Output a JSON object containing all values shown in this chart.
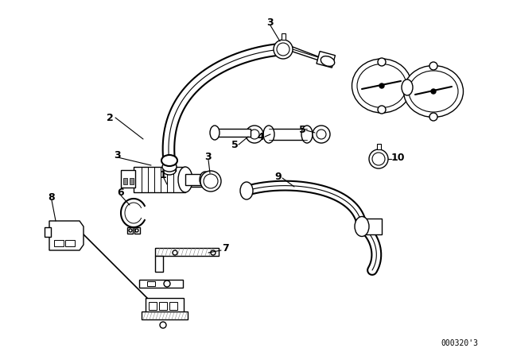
{
  "background_color": "#ffffff",
  "line_color": "#000000",
  "diagram_code": "000320'3",
  "fig_width": 6.4,
  "fig_height": 4.48,
  "dpi": 100
}
